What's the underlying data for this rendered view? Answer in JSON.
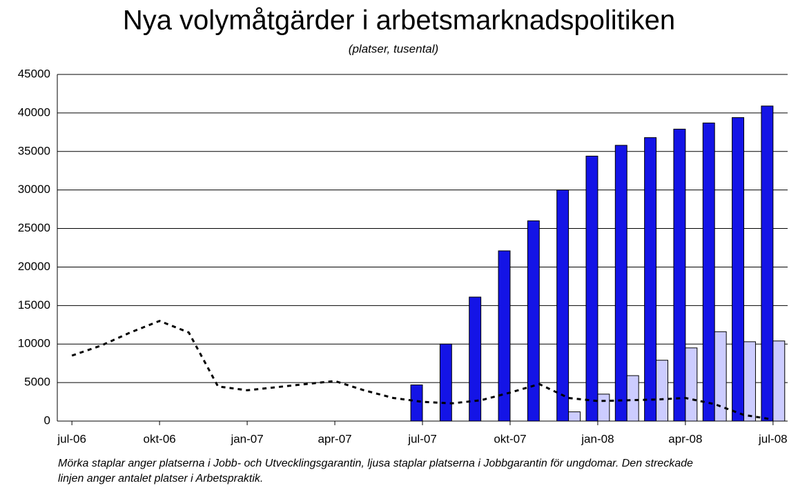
{
  "chart_data": {
    "type": "bar",
    "title": "Nya volymåtgärder i arbetsmarknadspolitiken",
    "subtitle": "(platser, tusental)",
    "footnote": "Mörka staplar anger platserna i Jobb- och Utvecklingsgarantin, ljusa staplar platserna i Jobbgarantin för ungdomar. Den streckade linjen anger antalet platser i Arbetspraktik.",
    "categories": [
      "jul-06",
      null,
      null,
      "okt-06",
      null,
      null,
      "jan-07",
      null,
      null,
      "apr-07",
      null,
      null,
      "jul-07",
      null,
      null,
      "okt-07",
      null,
      null,
      "jan-08",
      null,
      null,
      "apr-08",
      null,
      null,
      "jul-08"
    ],
    "series": [
      {
        "type": "bar",
        "color": "#1414e6",
        "values": [
          null,
          null,
          null,
          null,
          null,
          null,
          null,
          null,
          null,
          null,
          null,
          null,
          4700,
          10000,
          16100,
          22100,
          26000,
          30000,
          34400,
          35800,
          36800,
          37900,
          38700,
          39400,
          40900
        ]
      },
      {
        "type": "bar",
        "color": "#ccccff",
        "values": [
          null,
          null,
          null,
          null,
          null,
          null,
          null,
          null,
          null,
          null,
          null,
          null,
          null,
          null,
          null,
          null,
          null,
          1200,
          3500,
          5900,
          7900,
          9500,
          11600,
          10300,
          10400
        ]
      },
      {
        "type": "line",
        "color": "#000000",
        "dashed": true,
        "values": [
          8500,
          9800,
          11500,
          13000,
          11500,
          4500,
          4000,
          4400,
          4800,
          5200,
          4000,
          3000,
          2500,
          2300,
          2700,
          3700,
          4800,
          3000,
          2600,
          2700,
          2800,
          3000,
          2200,
          800,
          200
        ]
      }
    ],
    "ylim": [
      0,
      45000
    ],
    "yticks": [
      0,
      5000,
      10000,
      15000,
      20000,
      25000,
      30000,
      35000,
      40000,
      45000
    ],
    "grid": true
  }
}
